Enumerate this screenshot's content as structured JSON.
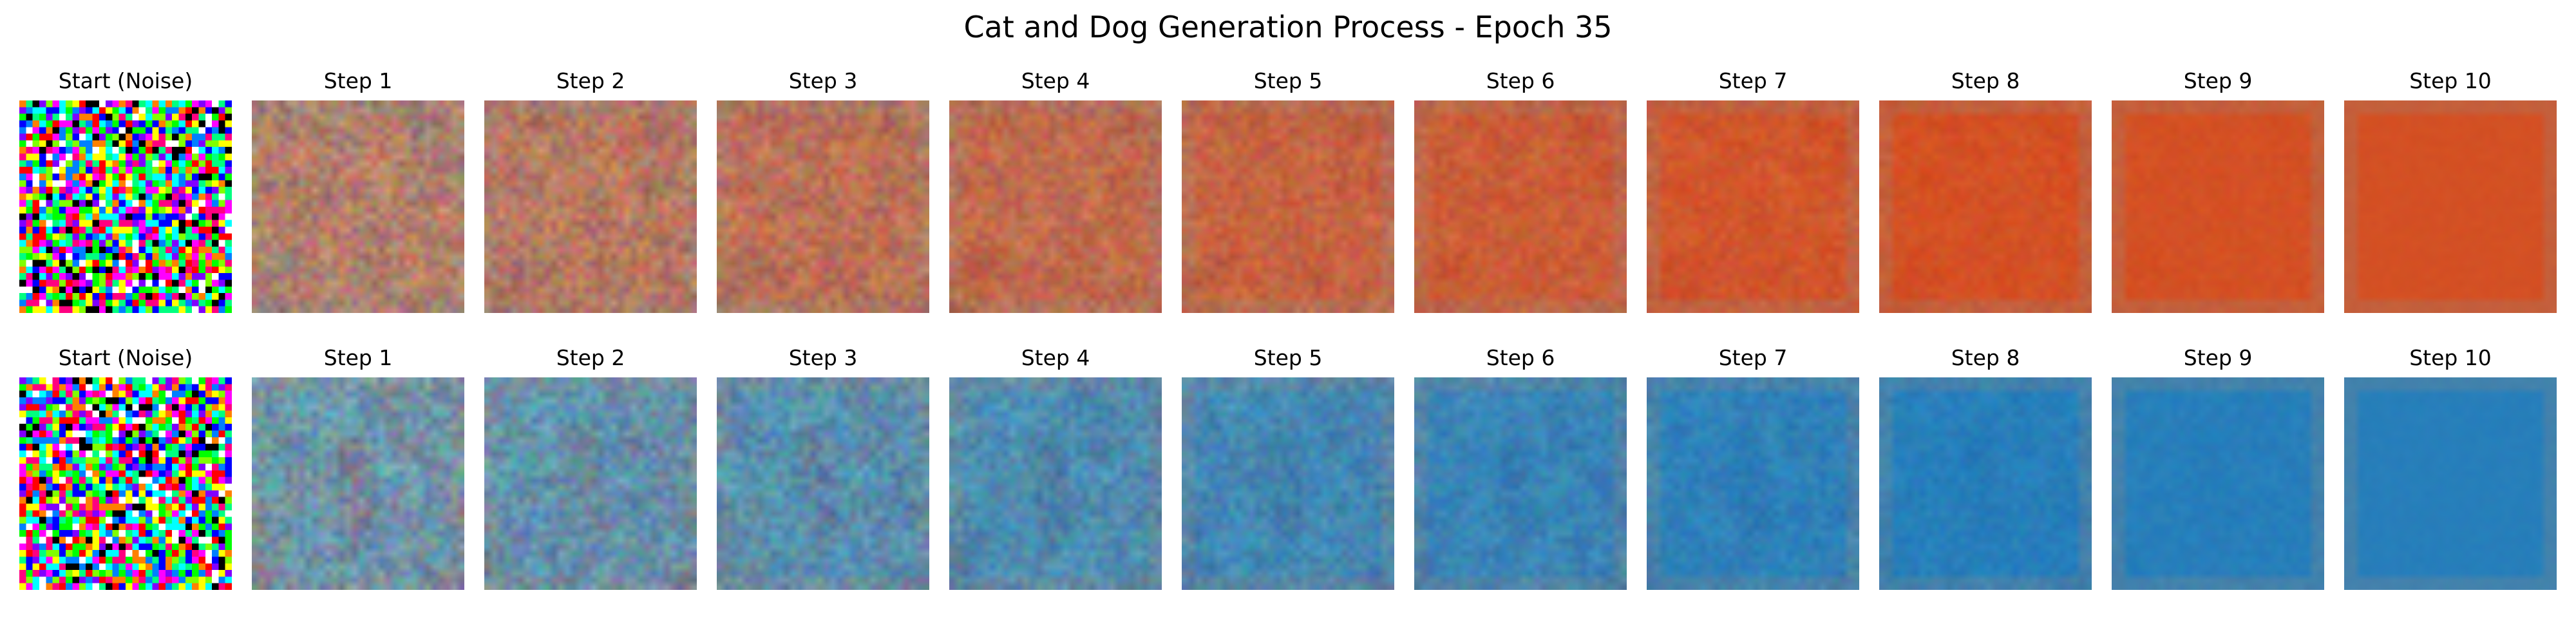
{
  "figure": {
    "title": "Cat and Dog Generation Process - Epoch 35"
  },
  "rows": [
    {
      "target_color": "#c8360f",
      "accent_color": "#ef8e55",
      "steps": [
        {
          "label": "Start (Noise)"
        },
        {
          "label": "Step 1"
        },
        {
          "label": "Step 2"
        },
        {
          "label": "Step 3"
        },
        {
          "label": "Step 4"
        },
        {
          "label": "Step 5"
        },
        {
          "label": "Step 6"
        },
        {
          "label": "Step 7"
        },
        {
          "label": "Step 8"
        },
        {
          "label": "Step 9"
        },
        {
          "label": "Step 10"
        }
      ]
    },
    {
      "target_color": "#1660a8",
      "accent_color": "#4fc6e6",
      "steps": [
        {
          "label": "Start (Noise)"
        },
        {
          "label": "Step 1"
        },
        {
          "label": "Step 2"
        },
        {
          "label": "Step 3"
        },
        {
          "label": "Step 4"
        },
        {
          "label": "Step 5"
        },
        {
          "label": "Step 6"
        },
        {
          "label": "Step 7"
        },
        {
          "label": "Step 8"
        },
        {
          "label": "Step 9"
        },
        {
          "label": "Step 10"
        }
      ]
    }
  ]
}
